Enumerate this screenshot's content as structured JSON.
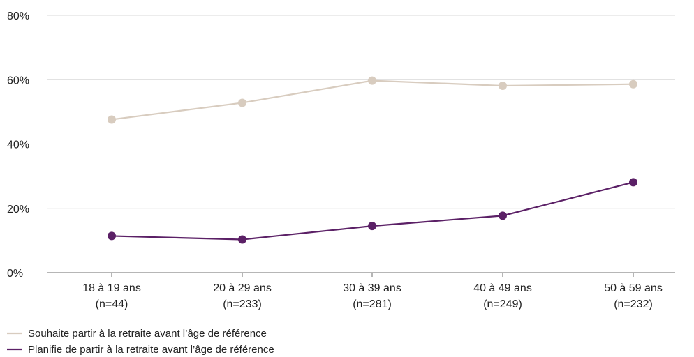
{
  "chart_data": {
    "type": "line",
    "categories": [
      [
        "18 à 19 ans",
        "(n=44)"
      ],
      [
        "20 à 29 ans",
        "(n=233)"
      ],
      [
        "30 à 39 ans",
        "(n=281)"
      ],
      [
        "40 à 49 ans",
        "(n=249)"
      ],
      [
        "50 à 59 ans",
        "(n=232)"
      ]
    ],
    "y_ticks": [
      "0%",
      "20%",
      "40%",
      "60%",
      "80%"
    ],
    "ylim": [
      0,
      80
    ],
    "grid": true,
    "legend_placement": "bottom-left",
    "series": [
      {
        "name": "Souhaite partir à la retraite avant l’âge de référence",
        "color": "#d8ccbf",
        "values": [
          47.6,
          52.8,
          59.7,
          58.1,
          58.6
        ]
      },
      {
        "name": "Planifie de partir à la retraite avant l’âge de référence",
        "color": "#5b2066",
        "values": [
          11.4,
          10.3,
          14.5,
          17.7,
          28.1
        ]
      }
    ]
  }
}
